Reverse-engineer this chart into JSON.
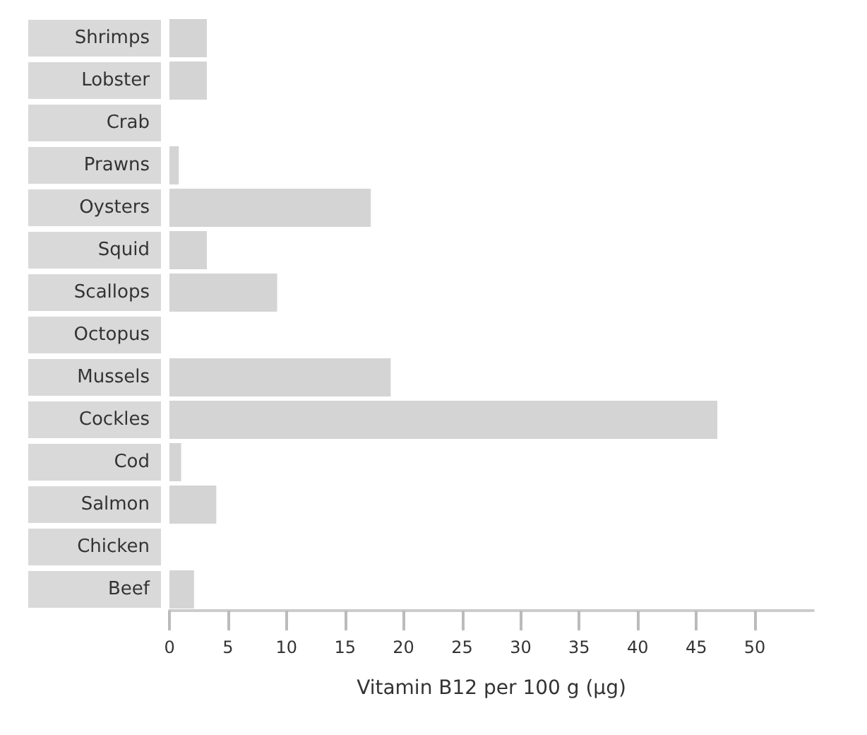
{
  "chart_data": {
    "type": "bar",
    "orientation": "horizontal",
    "xlabel": "Vitamin B12 per 100 g (µg)",
    "categories": [
      "Shrimps",
      "Lobster",
      "Crab",
      "Prawns",
      "Oysters",
      "Squid",
      "Scallops",
      "Octopus",
      "Mussels",
      "Cockles",
      "Cod",
      "Salmon",
      "Chicken",
      "Beef"
    ],
    "values": [
      3.2,
      3.2,
      0,
      0.8,
      17.2,
      3.2,
      9.2,
      0,
      18.9,
      46.8,
      1.0,
      4.0,
      0,
      2.1
    ],
    "color": "#d4d4d4",
    "xlim": [
      0,
      55
    ],
    "xticks": [
      0,
      5,
      10,
      15,
      20,
      25,
      30,
      35,
      40,
      45,
      50
    ],
    "grid": false
  }
}
